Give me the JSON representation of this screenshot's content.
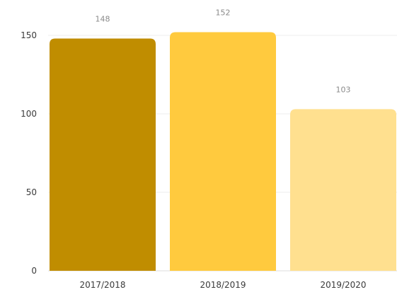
{
  "chart_data": {
    "type": "bar",
    "title": "",
    "xlabel": "",
    "ylabel": "",
    "categories": [
      "2017/2018",
      "2018/2019",
      "2019/2020"
    ],
    "values": [
      148,
      152,
      103
    ],
    "data_labels": [
      "148",
      "152",
      "103"
    ],
    "bar_colors": [
      "#c08d00",
      "#ffca3e",
      "#ffe08f"
    ],
    "ylim": [
      0,
      150
    ],
    "yticks": [
      "0",
      "50",
      "100",
      "150"
    ],
    "ytick_values": [
      0,
      50,
      100,
      150
    ],
    "grid": true,
    "legend": "none"
  }
}
